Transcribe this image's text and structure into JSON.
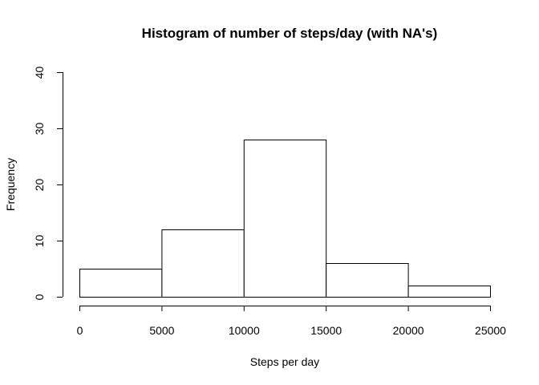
{
  "chart_data": {
    "type": "bar",
    "title": "Histogram of number of steps/day (with NA's)",
    "xlabel": "Steps per day",
    "ylabel": "Frequency",
    "bins": [
      {
        "from": 0,
        "to": 5000,
        "count": 5
      },
      {
        "from": 5000,
        "to": 10000,
        "count": 12
      },
      {
        "from": 10000,
        "to": 15000,
        "count": 28
      },
      {
        "from": 15000,
        "to": 20000,
        "count": 6
      },
      {
        "from": 20000,
        "to": 25000,
        "count": 2
      }
    ],
    "xlim": [
      0,
      25000
    ],
    "ylim": [
      0,
      40
    ],
    "xticks": [
      0,
      5000,
      10000,
      15000,
      20000,
      25000
    ],
    "yticks": [
      0,
      10,
      20,
      30,
      40
    ],
    "xtick_labels": [
      "0",
      "5000",
      "10000",
      "15000",
      "20000",
      "25000"
    ],
    "ytick_labels": [
      "0",
      "10",
      "20",
      "30",
      "40"
    ],
    "grid": false,
    "legend": "none",
    "bar_fill": "#ffffff",
    "bar_stroke": "#000000"
  }
}
